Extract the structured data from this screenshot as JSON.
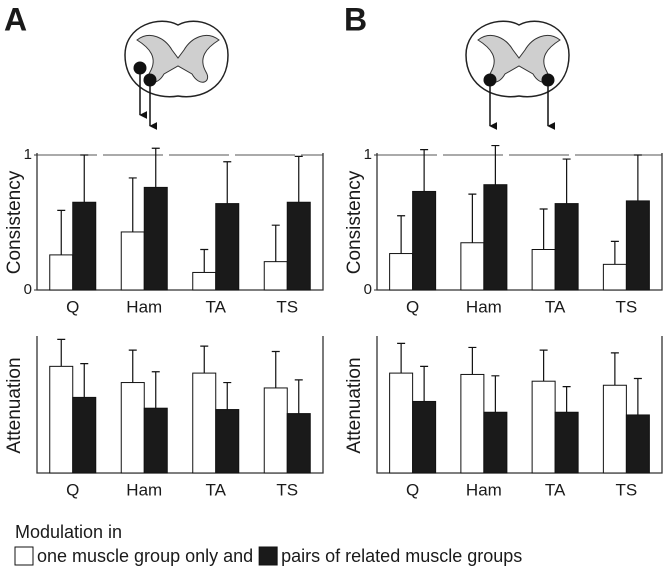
{
  "chart_data": [
    {
      "type": "bar",
      "panel": "A",
      "ylabel": "Consistency",
      "categories": [
        "Q",
        "Ham",
        "TA",
        "TS"
      ],
      "series": [
        {
          "name": "one muscle group only and",
          "color": "#ffffff",
          "values": [
            0.26,
            0.43,
            0.13,
            0.21
          ],
          "errors": [
            0.33,
            0.4,
            0.17,
            0.27
          ]
        },
        {
          "name": "pairs of related muscle groups",
          "color": "#1a1a1a",
          "values": [
            0.65,
            0.76,
            0.64,
            0.65
          ],
          "errors": [
            0.35,
            0.29,
            0.31,
            0.34
          ]
        }
      ],
      "ylim": [
        0,
        1
      ],
      "yticks": [
        0,
        1
      ],
      "grid": true
    },
    {
      "type": "bar",
      "ylabel": "Attenuation",
      "categories": [
        "Q",
        "Ham",
        "TA",
        "TS"
      ],
      "series": [
        {
          "color": "#ffffff",
          "values": [
            0.79,
            0.67,
            0.74,
            0.63
          ],
          "errors": [
            0.2,
            0.24,
            0.2,
            0.27
          ]
        },
        {
          "color": "#1a1a1a",
          "values": [
            0.56,
            0.48,
            0.47,
            0.44
          ],
          "errors": [
            0.25,
            0.27,
            0.2,
            0.25
          ]
        }
      ],
      "ylim": [
        0,
        1
      ]
    },
    {
      "type": "bar",
      "panel": "B",
      "ylabel": "Consistency",
      "categories": [
        "Q",
        "Ham",
        "TA",
        "TS"
      ],
      "series": [
        {
          "color": "#ffffff",
          "values": [
            0.27,
            0.35,
            0.3,
            0.19
          ],
          "errors": [
            0.28,
            0.36,
            0.3,
            0.17
          ]
        },
        {
          "color": "#1a1a1a",
          "values": [
            0.73,
            0.78,
            0.64,
            0.66
          ],
          "errors": [
            0.31,
            0.29,
            0.33,
            0.34
          ]
        }
      ],
      "ylim": [
        0,
        1
      ],
      "yticks": [
        0,
        1
      ],
      "grid": true
    },
    {
      "type": "bar",
      "ylabel": "Attenuation",
      "categories": [
        "Q",
        "Ham",
        "TA",
        "TS"
      ],
      "series": [
        {
          "color": "#ffffff",
          "values": [
            0.74,
            0.73,
            0.68,
            0.65
          ],
          "errors": [
            0.22,
            0.2,
            0.23,
            0.24
          ]
        },
        {
          "color": "#1a1a1a",
          "values": [
            0.53,
            0.45,
            0.45,
            0.43
          ],
          "errors": [
            0.26,
            0.27,
            0.19,
            0.27
          ]
        }
      ],
      "ylim": [
        0,
        1
      ]
    }
  ],
  "legend": {
    "title": "Modulation in"
  }
}
